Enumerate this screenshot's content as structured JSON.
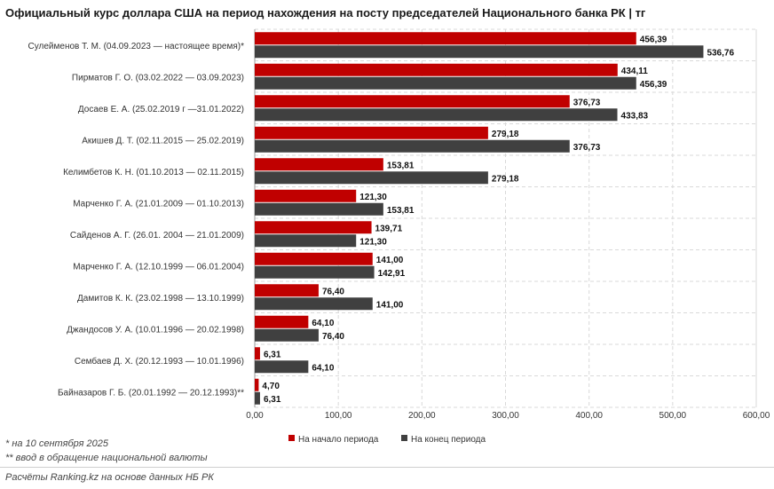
{
  "title": "Официальный курс доллара США на период нахождения на посту председателей Национального банка РК | тг",
  "footnotes": [
    "* на 10 сентября 2025",
    "** ввод в обращение национальной валюты"
  ],
  "source": "Расчёты Ranking.kz на основе данных НБ РК",
  "colors": {
    "start": "#c00000",
    "end": "#404040",
    "grid": "#d9d9d9"
  },
  "chart_data": {
    "type": "bar",
    "orientation": "horizontal",
    "categories": [
      "Сулейменов Т. М. (04.09.2023 — настоящее время)*",
      "Пирматов Г. О. (03.02.2022 — 03.09.2023)",
      "Досаев Е. А. (25.02.2019 г —31.01.2022)",
      "Акишев Д. Т. (02.11.2015 — 25.02.2019)",
      "Келимбетов К. Н. (01.10.2013 — 02.11.2015)",
      "Марченко Г. А. (21.01.2009 — 01.10.2013)",
      "Сайденов А. Г. (26.01. 2004 — 21.01.2009)",
      "Марченко Г. А. (12.10.1999 — 06.01.2004)",
      "Дамитов К. К. (23.02.1998 — 13.10.1999)",
      "Джандосов У. А. (10.01.1996 — 20.02.1998)",
      "Сембаев Д. Х. (20.12.1993 — 10.01.1996)",
      "Байназаров Г. Б. (20.01.1992 — 20.12.1993)**"
    ],
    "series": [
      {
        "name": "На начало периода",
        "values": [
          456.39,
          434.11,
          376.73,
          279.18,
          153.81,
          121.3,
          139.71,
          141.0,
          76.4,
          64.1,
          6.31,
          4.7
        ],
        "labels": [
          "456,39",
          "434,11",
          "376,73",
          "279,18",
          "153,81",
          "121,30",
          "139,71",
          "141,00",
          "76,40",
          "64,10",
          "6,31",
          "4,70"
        ]
      },
      {
        "name": "На конец периода",
        "values": [
          536.76,
          456.39,
          433.83,
          376.73,
          279.18,
          153.81,
          121.3,
          142.91,
          141.0,
          76.4,
          64.1,
          6.31
        ],
        "labels": [
          "536,76",
          "456,39",
          "433,83",
          "376,73",
          "279,18",
          "153,81",
          "121,30",
          "142,91",
          "141,00",
          "76,40",
          "64,10",
          "6,31"
        ]
      }
    ],
    "xlim": [
      0,
      600
    ],
    "xticks": [
      "0,00",
      "100,00",
      "200,00",
      "300,00",
      "400,00",
      "500,00",
      "600,00"
    ],
    "grid": true,
    "legend": "bottom"
  }
}
